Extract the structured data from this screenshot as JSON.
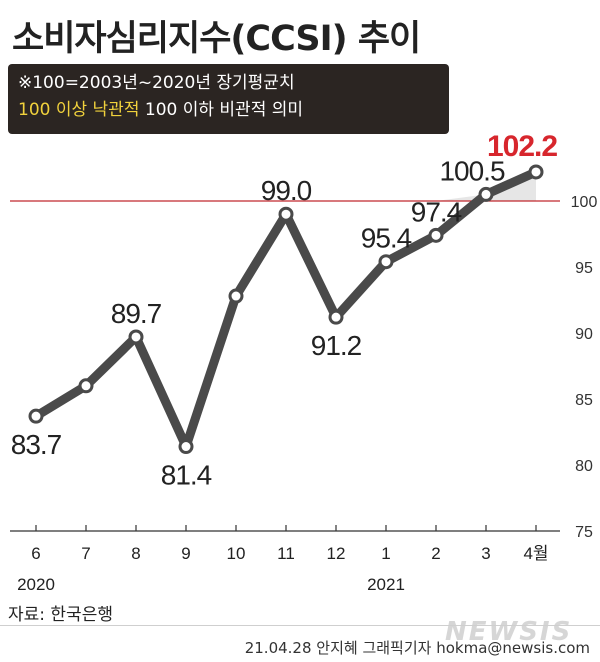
{
  "title": "소비자심리지수(CCSI) 추이",
  "note": {
    "line1": "※100=2003년~2020년 장기평균치",
    "line2_highlight": "100 이상 낙관적",
    "line2_rest": " 100 이하 비관적 의미"
  },
  "source": "자료: 한국은행",
  "credit": "21.04.28 안지혜 그래픽기자 hokma@newsis.com",
  "watermark": "NEWSIS",
  "colors": {
    "line": "#4a4a4a",
    "reference": "#c0282d",
    "highlight_label": "#d7262d",
    "shade": "#e6e6e6"
  },
  "chart_data": {
    "type": "line",
    "categories": [
      "6",
      "7",
      "8",
      "9",
      "10",
      "11",
      "12",
      "1",
      "2",
      "3",
      "4월"
    ],
    "year_labels": [
      {
        "at": "6",
        "label": "2020"
      },
      {
        "at": "1",
        "label": "2021"
      }
    ],
    "values": [
      83.7,
      86.0,
      89.7,
      81.4,
      92.8,
      99.0,
      91.2,
      95.4,
      97.4,
      100.5,
      102.2
    ],
    "data_labels": [
      {
        "index": 0,
        "text": "83.7",
        "pos": "below"
      },
      {
        "index": 2,
        "text": "89.7",
        "pos": "above"
      },
      {
        "index": 3,
        "text": "81.4",
        "pos": "below"
      },
      {
        "index": 5,
        "text": "99.0",
        "pos": "above"
      },
      {
        "index": 6,
        "text": "91.2",
        "pos": "below"
      },
      {
        "index": 7,
        "text": "95.4",
        "pos": "above"
      },
      {
        "index": 8,
        "text": "97.4",
        "pos": "above"
      },
      {
        "index": 9,
        "text": "100.5",
        "pos": "above"
      },
      {
        "index": 10,
        "text": "102.2",
        "pos": "above",
        "highlight": true
      }
    ],
    "yticks": [
      75,
      80,
      85,
      90,
      95,
      100
    ],
    "ylim": [
      75,
      104
    ],
    "reference_line": 100,
    "grid": false
  }
}
